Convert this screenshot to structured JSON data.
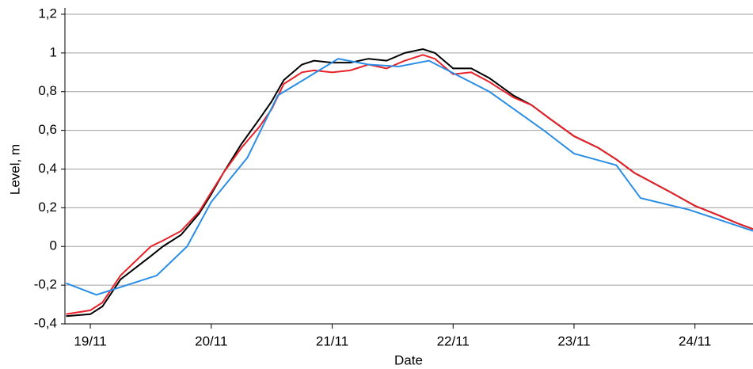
{
  "chart_data": {
    "type": "line",
    "x_label": "Date",
    "y_label": "Level, m",
    "xlim": [
      18.79,
      24.48
    ],
    "ylim": [
      -0.4,
      1.2
    ],
    "xticks": [
      {
        "value": 19,
        "label": "19/11"
      },
      {
        "value": 20,
        "label": "20/11"
      },
      {
        "value": 21,
        "label": "21/11"
      },
      {
        "value": 22,
        "label": "22/11"
      },
      {
        "value": 23,
        "label": "23/11"
      },
      {
        "value": 24,
        "label": "24/11"
      }
    ],
    "yticks": [
      {
        "value": -0.4,
        "label": "-0,4"
      },
      {
        "value": -0.2,
        "label": "-0,2"
      },
      0,
      {
        "value": 0.2,
        "label": "0,2"
      },
      {
        "value": 0.4,
        "label": "0,4"
      },
      {
        "value": 0.6,
        "label": "0,6"
      },
      {
        "value": 0.8,
        "label": "0,8"
      },
      1,
      {
        "value": 1.2,
        "label": "1,2"
      }
    ],
    "grid": true,
    "series": [
      {
        "color": "#000000",
        "x": [
          18.8,
          19.0,
          19.1,
          19.25,
          19.5,
          19.6,
          19.75,
          19.9,
          20.0,
          20.1,
          20.25,
          20.4,
          20.5,
          20.6,
          20.75,
          20.85,
          21.0,
          21.15,
          21.3,
          21.45,
          21.6,
          21.75,
          21.85,
          22.0,
          22.15,
          22.3,
          22.5,
          22.65,
          22.8,
          23.0,
          23.2,
          23.35,
          23.5,
          23.65,
          23.8,
          24.0,
          24.2,
          24.35,
          24.48
        ],
        "values": [
          -0.36,
          -0.35,
          -0.31,
          -0.17,
          -0.05,
          0.0,
          0.06,
          0.17,
          0.27,
          0.38,
          0.53,
          0.66,
          0.75,
          0.86,
          0.94,
          0.96,
          0.95,
          0.95,
          0.97,
          0.96,
          1.0,
          1.02,
          1.0,
          0.92,
          0.92,
          0.87,
          0.78,
          0.73,
          0.66,
          0.57,
          0.51,
          0.45,
          0.38,
          0.33,
          0.28,
          0.21,
          0.16,
          0.12,
          0.09
        ]
      },
      {
        "color": "#e8222a",
        "x": [
          18.8,
          19.0,
          19.1,
          19.25,
          19.5,
          19.6,
          19.75,
          19.9,
          20.0,
          20.1,
          20.25,
          20.4,
          20.5,
          20.6,
          20.75,
          20.85,
          21.0,
          21.15,
          21.3,
          21.45,
          21.6,
          21.75,
          21.85,
          22.0,
          22.15,
          22.3,
          22.5,
          22.65,
          22.8,
          23.0,
          23.2,
          23.35,
          23.5,
          23.65,
          23.8,
          24.0,
          24.2,
          24.35,
          24.48
        ],
        "values": [
          -0.35,
          -0.33,
          -0.29,
          -0.15,
          0.0,
          0.03,
          0.08,
          0.18,
          0.28,
          0.38,
          0.51,
          0.62,
          0.71,
          0.84,
          0.9,
          0.91,
          0.9,
          0.91,
          0.94,
          0.92,
          0.96,
          0.99,
          0.97,
          0.89,
          0.9,
          0.85,
          0.77,
          0.73,
          0.66,
          0.57,
          0.51,
          0.45,
          0.38,
          0.33,
          0.28,
          0.21,
          0.16,
          0.12,
          0.09
        ]
      },
      {
        "color": "#2a8de6",
        "x": [
          18.8,
          19.05,
          19.55,
          19.8,
          20.0,
          20.3,
          20.55,
          21.05,
          21.3,
          21.55,
          21.8,
          22.3,
          22.75,
          23.0,
          23.35,
          23.55,
          23.95,
          24.48
        ],
        "values": [
          -0.19,
          -0.25,
          -0.15,
          0.0,
          0.23,
          0.46,
          0.78,
          0.97,
          0.94,
          0.93,
          0.96,
          0.8,
          0.6,
          0.48,
          0.42,
          0.25,
          0.19,
          0.08
        ]
      }
    ]
  }
}
